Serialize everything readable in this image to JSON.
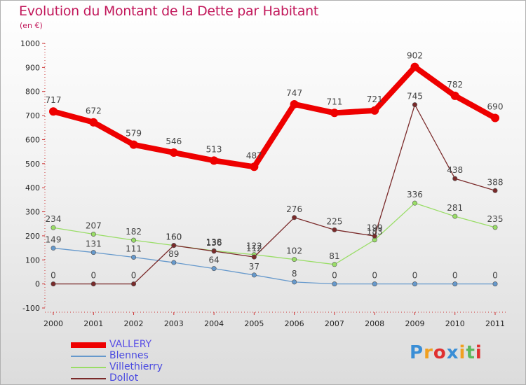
{
  "title": "Evolution du Montant de la Dette par Habitant",
  "subtitle": "(en €)",
  "logo": {
    "text": "Proxiti",
    "letters": [
      "P",
      "r",
      "o",
      "x",
      "i",
      "t",
      "i"
    ],
    "colors": [
      "#3a8ed6",
      "#f0a020",
      "#e03030",
      "#3a8ed6",
      "#f0a020",
      "#5cb85c",
      "#e03030"
    ]
  },
  "chart_data": {
    "type": "line",
    "x": [
      "2000",
      "2001",
      "2002",
      "2003",
      "2004",
      "2005",
      "2006",
      "2007",
      "2008",
      "2009",
      "2010",
      "2011"
    ],
    "ylim": [
      -100,
      1000
    ],
    "yticks": [
      -100,
      0,
      100,
      200,
      300,
      400,
      500,
      600,
      700,
      800,
      900,
      1000
    ],
    "grid": false,
    "legend_position": "bottom-left",
    "series": [
      {
        "name": "VALLERY",
        "color": "#ee0000",
        "values": [
          717,
          672,
          579,
          546,
          513,
          487,
          747,
          711,
          721,
          902,
          782,
          690
        ]
      },
      {
        "name": "Blennes",
        "color": "#6699cc",
        "values": [
          149,
          131,
          111,
          89,
          64,
          37,
          8,
          0,
          0,
          0,
          0,
          0
        ]
      },
      {
        "name": "Villethierry",
        "color": "#99dd66",
        "values": [
          234,
          207,
          182,
          160,
          138,
          122,
          102,
          81,
          183,
          336,
          281,
          235
        ]
      },
      {
        "name": "Dollot",
        "color": "#7a2a2a",
        "values": [
          0,
          0,
          0,
          160,
          136,
          112,
          276,
          225,
          199,
          745,
          438,
          388
        ]
      }
    ]
  }
}
